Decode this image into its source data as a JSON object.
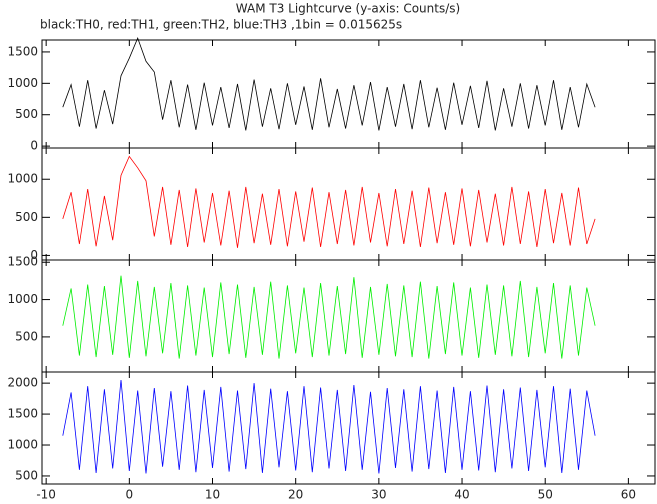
{
  "chart_data": [
    {
      "type": "line",
      "title": "WAM T3 Lightcurve (y-axis: Counts/s)",
      "subtitle": "black:TH0, red:TH1, green:TH2, blue:TH3 ,1bin = 0.015625s",
      "x": [
        -8,
        -7,
        -6,
        -5,
        -4,
        -3,
        -2,
        -1,
        0,
        1,
        2,
        3,
        4,
        5,
        6,
        7,
        8,
        9,
        10,
        11,
        12,
        13,
        14,
        15,
        16,
        17,
        18,
        19,
        20,
        21,
        22,
        23,
        24,
        25,
        26,
        27,
        28,
        29,
        30,
        31,
        32,
        33,
        34,
        35,
        36,
        37,
        38,
        39,
        40,
        41,
        42,
        43,
        44,
        45,
        46,
        47,
        48,
        49,
        50,
        51,
        52,
        53,
        54,
        55,
        56
      ],
      "series": [
        {
          "color": "#000000",
          "values": [
            620,
            980,
            310,
            1050,
            280,
            890,
            350,
            1120,
            1400,
            1720,
            1350,
            1180,
            420,
            1050,
            300,
            980,
            260,
            1010,
            330,
            940,
            290,
            990,
            250,
            1060,
            310,
            920,
            270,
            1000,
            340,
            950,
            260,
            1080,
            300,
            910,
            280,
            970,
            330,
            1020,
            250,
            940,
            310,
            990,
            270,
            1050,
            300,
            930,
            260,
            1010,
            340,
            960,
            290,
            1040,
            250,
            920,
            310,
            1000,
            280,
            970,
            330,
            1050,
            260,
            940,
            300,
            990,
            620
          ]
        }
      ],
      "xlim": [
        -10.5,
        63.2
      ],
      "xticks": [
        -10,
        0,
        10,
        20,
        30,
        40,
        50,
        60
      ],
      "ylim": [
        -30,
        1690
      ],
      "yticks": [
        0,
        500,
        1000,
        1500
      ]
    },
    {
      "type": "line",
      "x": [
        -8,
        -7,
        -6,
        -5,
        -4,
        -3,
        -2,
        -1,
        0,
        1,
        2,
        3,
        4,
        5,
        6,
        7,
        8,
        9,
        10,
        11,
        12,
        13,
        14,
        15,
        16,
        17,
        18,
        19,
        20,
        21,
        22,
        23,
        24,
        25,
        26,
        27,
        28,
        29,
        30,
        31,
        32,
        33,
        34,
        35,
        36,
        37,
        38,
        39,
        40,
        41,
        42,
        43,
        44,
        45,
        46,
        47,
        48,
        49,
        50,
        51,
        52,
        53,
        54,
        55,
        56
      ],
      "series": [
        {
          "color": "#ff0000",
          "values": [
            480,
            830,
            150,
            870,
            120,
            780,
            200,
            1050,
            1300,
            1150,
            980,
            250,
            900,
            140,
            860,
            110,
            880,
            170,
            820,
            130,
            850,
            100,
            900,
            160,
            810,
            140,
            870,
            120,
            840,
            180,
            890,
            110,
            830,
            150,
            860,
            130,
            900,
            170,
            820,
            120,
            870,
            150,
            850,
            110,
            890,
            160,
            830,
            140,
            880,
            120,
            860,
            170,
            810,
            130,
            900,
            150,
            840,
            110,
            870,
            160,
            820,
            130,
            890,
            150,
            480
          ]
        }
      ],
      "xlim": [
        -10.5,
        63.2
      ],
      "xticks": [
        -10,
        0,
        10,
        20,
        30,
        40,
        50,
        60
      ],
      "ylim": [
        -60,
        1410
      ],
      "yticks": [
        0,
        500,
        1000
      ]
    },
    {
      "type": "line",
      "x": [
        -8,
        -7,
        -6,
        -5,
        -4,
        -3,
        -2,
        -1,
        0,
        1,
        2,
        3,
        4,
        5,
        6,
        7,
        8,
        9,
        10,
        11,
        12,
        13,
        14,
        15,
        16,
        17,
        18,
        19,
        20,
        21,
        22,
        23,
        24,
        25,
        26,
        27,
        28,
        29,
        30,
        31,
        32,
        33,
        34,
        35,
        36,
        37,
        38,
        39,
        40,
        41,
        42,
        43,
        44,
        45,
        46,
        47,
        48,
        49,
        50,
        51,
        52,
        53,
        54,
        55,
        56
      ],
      "series": [
        {
          "color": "#00ee00",
          "values": [
            650,
            1150,
            250,
            1200,
            230,
            1180,
            260,
            1320,
            220,
            1250,
            240,
            1170,
            280,
            1220,
            210,
            1190,
            250,
            1160,
            230,
            1230,
            270,
            1200,
            220,
            1170,
            260,
            1240,
            210,
            1190,
            280,
            1160,
            230,
            1220,
            250,
            1180,
            270,
            1300,
            220,
            1170,
            260,
            1210,
            240,
            1190,
            230,
            1240,
            210,
            1180,
            270,
            1230,
            250,
            1160,
            220,
            1200,
            260,
            1190,
            240,
            1250,
            230,
            1170,
            280,
            1220,
            210,
            1190,
            250,
            1160,
            650
          ]
        }
      ],
      "xlim": [
        -10.5,
        63.2
      ],
      "xticks": [
        -10,
        0,
        10,
        20,
        30,
        40,
        50,
        60
      ],
      "ylim": [
        30,
        1530
      ],
      "yticks": [
        500,
        1000,
        1500
      ]
    },
    {
      "type": "line",
      "x": [
        -8,
        -7,
        -6,
        -5,
        -4,
        -3,
        -2,
        -1,
        0,
        1,
        2,
        3,
        4,
        5,
        6,
        7,
        8,
        9,
        10,
        11,
        12,
        13,
        14,
        15,
        16,
        17,
        18,
        19,
        20,
        21,
        22,
        23,
        24,
        25,
        26,
        27,
        28,
        29,
        30,
        31,
        32,
        33,
        34,
        35,
        36,
        37,
        38,
        39,
        40,
        41,
        42,
        43,
        44,
        45,
        46,
        47,
        48,
        49,
        50,
        51,
        52,
        53,
        54,
        55,
        56
      ],
      "series": [
        {
          "color": "#0000ff",
          "values": [
            1150,
            1850,
            600,
            1950,
            550,
            1900,
            620,
            2050,
            580,
            1880,
            540,
            1920,
            650,
            1870,
            600,
            1960,
            560,
            1890,
            630,
            1940,
            570,
            1880,
            610,
            2000,
            550,
            1910,
            640,
            1870,
            590,
            1950,
            560,
            1930,
            620,
            1890,
            580,
            1970,
            600,
            1860,
            540,
            1920,
            630,
            1900,
            570,
            1950,
            610,
            1880,
            550,
            1940,
            600,
            1870,
            590,
            1960,
            560,
            1900,
            620,
            1930,
            580,
            1890,
            640,
            1950,
            550,
            1910,
            600,
            1880,
            1150
          ]
        }
      ],
      "xlim": [
        -10.5,
        63.2
      ],
      "xticks": [
        -10,
        0,
        10,
        20,
        30,
        40,
        50,
        60
      ],
      "ylim": [
        370,
        2180
      ],
      "yticks": [
        500,
        1000,
        1500,
        2000
      ]
    }
  ]
}
